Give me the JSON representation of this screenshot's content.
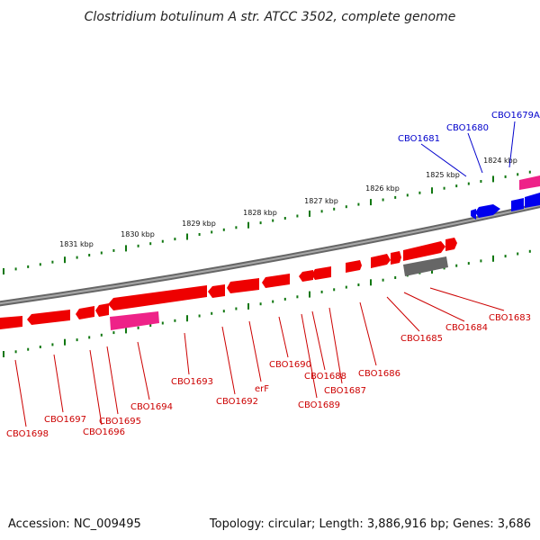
{
  "title": "Clostridium botulinum A str. ATCC 3502, complete genome",
  "footer": {
    "accession": "Accession: NC_009495",
    "summary": "Topology: circular; Length: 3,886,916 bp; Genes: 3,686"
  },
  "colors": {
    "forward_gene": "#ee0000",
    "reverse_gene": "#ee0000",
    "blue_gene": "#0000ee",
    "pink_gene": "#ee2288",
    "gray_feature": "#666666",
    "backbone": "#808080",
    "ticks": "#117711",
    "label_red": "#cc0000",
    "label_blue": "#0000cc"
  },
  "scale": {
    "labels": [
      "1824 kbp",
      "1825 kbp",
      "1826 kbp",
      "1827 kbp",
      "1828 kbp",
      "1829 kbp",
      "1830 kbp",
      "1831 kbp"
    ]
  },
  "labels": {
    "blue": [
      "CBO1679A",
      "CBO1680",
      "CBO1681"
    ],
    "red": [
      "CBO1683",
      "CBO1684",
      "CBO1685",
      "CBO1686",
      "CBO1687",
      "CBO1688",
      "CBO1689",
      "CBO1690",
      "erF",
      "CBO1692",
      "CBO1693",
      "CBO1694",
      "CBO1695",
      "CBO1696",
      "CBO1697",
      "CBO1698"
    ]
  }
}
